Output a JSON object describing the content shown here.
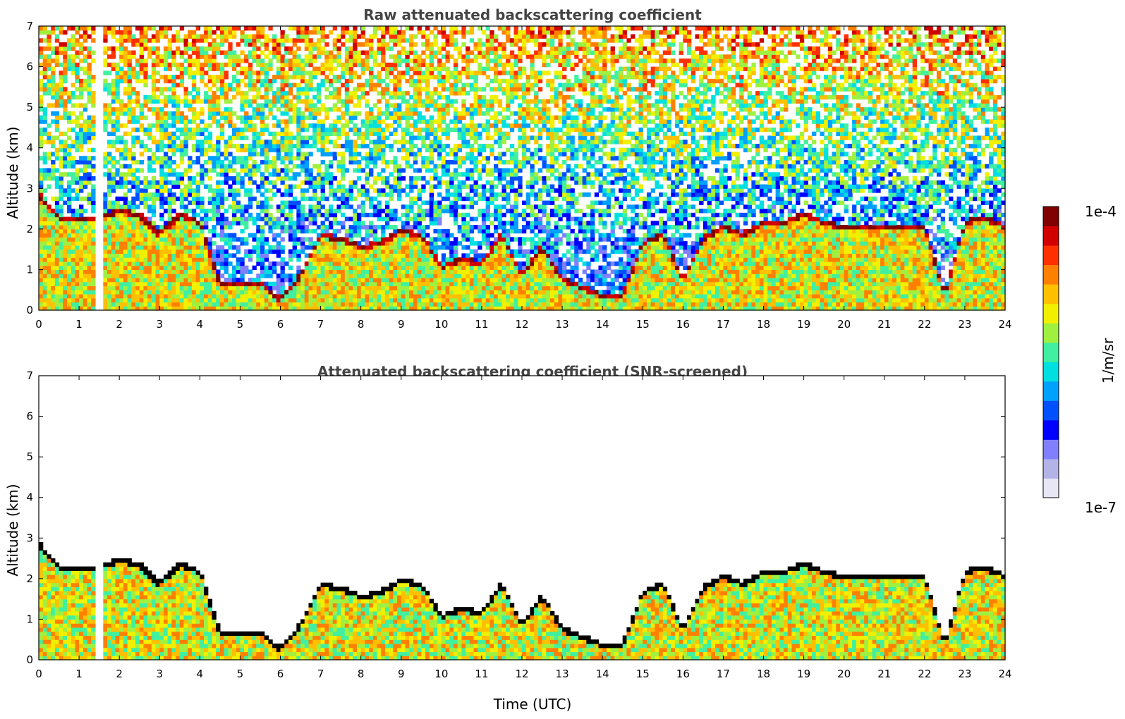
{
  "chart_data": [
    {
      "type": "heatmap",
      "title": "Raw attenuated backscattering coefficient",
      "xlabel": "",
      "ylabel": "Altitude (km)",
      "xlim": [
        0,
        24
      ],
      "ylim": [
        0,
        7
      ],
      "x_ticks": [
        0,
        1,
        2,
        3,
        4,
        5,
        6,
        7,
        8,
        9,
        10,
        11,
        12,
        13,
        14,
        15,
        16,
        17,
        18,
        19,
        20,
        21,
        22,
        23,
        24
      ],
      "y_ticks": [
        0,
        1,
        2,
        3,
        4,
        5,
        6,
        7
      ],
      "grid": false,
      "screened": false,
      "layer_top_km": [
        [
          0.0,
          2.8
        ],
        [
          0.5,
          2.2
        ],
        [
          1.0,
          2.2
        ],
        [
          1.5,
          2.2
        ],
        [
          2.0,
          2.4
        ],
        [
          2.5,
          2.3
        ],
        [
          3.0,
          1.8
        ],
        [
          3.5,
          2.3
        ],
        [
          4.0,
          2.1
        ],
        [
          4.5,
          0.6
        ],
        [
          5.0,
          0.6
        ],
        [
          5.5,
          0.6
        ],
        [
          6.0,
          0.2
        ],
        [
          6.5,
          0.8
        ],
        [
          7.0,
          1.8
        ],
        [
          7.5,
          1.7
        ],
        [
          8.0,
          1.5
        ],
        [
          8.5,
          1.6
        ],
        [
          9.0,
          1.9
        ],
        [
          9.5,
          1.8
        ],
        [
          10.0,
          1.0
        ],
        [
          10.5,
          1.2
        ],
        [
          11.0,
          1.1
        ],
        [
          11.5,
          1.8
        ],
        [
          12.0,
          0.8
        ],
        [
          12.5,
          1.5
        ],
        [
          13.0,
          0.7
        ],
        [
          13.5,
          0.5
        ],
        [
          14.0,
          0.3
        ],
        [
          14.5,
          0.3
        ],
        [
          15.0,
          1.6
        ],
        [
          15.5,
          1.8
        ],
        [
          16.0,
          0.7
        ],
        [
          16.5,
          1.7
        ],
        [
          17.0,
          2.0
        ],
        [
          17.5,
          1.8
        ],
        [
          18.0,
          2.1
        ],
        [
          18.5,
          2.1
        ],
        [
          19.0,
          2.3
        ],
        [
          19.5,
          2.1
        ],
        [
          20.0,
          2.0
        ],
        [
          20.5,
          2.0
        ],
        [
          21.0,
          2.0
        ],
        [
          21.5,
          2.0
        ],
        [
          22.0,
          2.0
        ],
        [
          22.5,
          0.3
        ],
        [
          23.0,
          2.1
        ],
        [
          23.5,
          2.2
        ],
        [
          24.0,
          2.0
        ]
      ]
    },
    {
      "type": "heatmap",
      "title": "Attenuated backscattering coefficient (SNR-screened)",
      "xlabel": "Time (UTC)",
      "ylabel": "Altitude (km)",
      "xlim": [
        0,
        24
      ],
      "ylim": [
        0,
        7
      ],
      "x_ticks": [
        0,
        1,
        2,
        3,
        4,
        5,
        6,
        7,
        8,
        9,
        10,
        11,
        12,
        13,
        14,
        15,
        16,
        17,
        18,
        19,
        20,
        21,
        22,
        23,
        24
      ],
      "y_ticks": [
        0,
        1,
        2,
        3,
        4,
        5,
        6,
        7
      ],
      "grid": false,
      "screened": true,
      "layer_top_km": [
        [
          0.0,
          2.8
        ],
        [
          0.5,
          2.2
        ],
        [
          1.0,
          2.2
        ],
        [
          1.5,
          2.2
        ],
        [
          2.0,
          2.4
        ],
        [
          2.5,
          2.3
        ],
        [
          3.0,
          1.8
        ],
        [
          3.5,
          2.3
        ],
        [
          4.0,
          2.1
        ],
        [
          4.5,
          0.6
        ],
        [
          5.0,
          0.6
        ],
        [
          5.5,
          0.6
        ],
        [
          6.0,
          0.2
        ],
        [
          6.5,
          0.8
        ],
        [
          7.0,
          1.8
        ],
        [
          7.5,
          1.7
        ],
        [
          8.0,
          1.5
        ],
        [
          8.5,
          1.6
        ],
        [
          9.0,
          1.9
        ],
        [
          9.5,
          1.8
        ],
        [
          10.0,
          1.0
        ],
        [
          10.5,
          1.2
        ],
        [
          11.0,
          1.1
        ],
        [
          11.5,
          1.8
        ],
        [
          12.0,
          0.8
        ],
        [
          12.5,
          1.5
        ],
        [
          13.0,
          0.7
        ],
        [
          13.5,
          0.5
        ],
        [
          14.0,
          0.3
        ],
        [
          14.5,
          0.3
        ],
        [
          15.0,
          1.6
        ],
        [
          15.5,
          1.8
        ],
        [
          16.0,
          0.7
        ],
        [
          16.5,
          1.7
        ],
        [
          17.0,
          2.0
        ],
        [
          17.5,
          1.8
        ],
        [
          18.0,
          2.1
        ],
        [
          18.5,
          2.1
        ],
        [
          19.0,
          2.3
        ],
        [
          19.5,
          2.1
        ],
        [
          20.0,
          2.0
        ],
        [
          20.5,
          2.0
        ],
        [
          21.0,
          2.0
        ],
        [
          21.5,
          2.0
        ],
        [
          22.0,
          2.0
        ],
        [
          22.5,
          0.3
        ],
        [
          23.0,
          2.1
        ],
        [
          23.5,
          2.2
        ],
        [
          24.0,
          2.0
        ]
      ]
    }
  ],
  "colorbar": {
    "label": "1/m/sr",
    "max_label": "1e-4",
    "min_label": "1e-7",
    "colors": [
      "#e6e6f5",
      "#b3b3e8",
      "#8080ff",
      "#0000ff",
      "#0050ff",
      "#00a0ff",
      "#00e0e0",
      "#40f0a0",
      "#a0f040",
      "#f0f000",
      "#ffc000",
      "#ff8000",
      "#ff3000",
      "#d00000",
      "#800000"
    ]
  }
}
